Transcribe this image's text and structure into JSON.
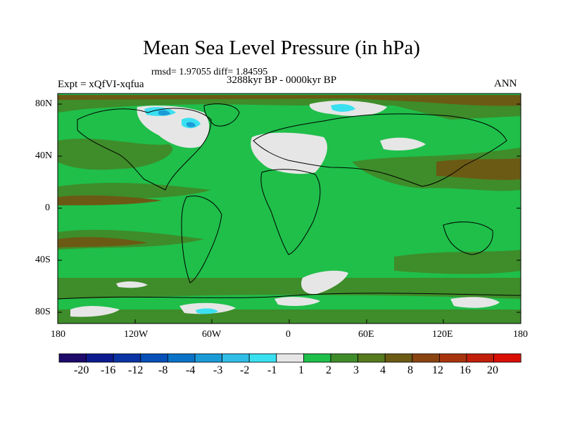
{
  "title": "Mean Sea Level Pressure (in hPa)",
  "stats": "rmsd= 1.97055 diff= 1.84595",
  "experiment": "Expt = xQfVI-xqfua",
  "period": "3288kyr BP - 0000kyr BP",
  "season": "ANN",
  "lat_labels": [
    "80N",
    "40N",
    "0",
    "40S",
    "80S"
  ],
  "lon_labels": [
    "180",
    "120W",
    "60W",
    "0",
    "60E",
    "120E",
    "180"
  ],
  "colorbar": {
    "colors": [
      "#1d0a6b",
      "#0c1a8f",
      "#0a34a3",
      "#0650b8",
      "#0a73c8",
      "#1b9ad8",
      "#30bde6",
      "#3ae0f0",
      "#e6e6e6",
      "#1fbf4a",
      "#3f8c2a",
      "#567a1e",
      "#6b5a14",
      "#8a4411",
      "#a8340d",
      "#c21e0a",
      "#d90f06"
    ],
    "labels": [
      "-20",
      "-16",
      "-12",
      "-8",
      "-4",
      "-3",
      "-2",
      "-1",
      "1",
      "2",
      "3",
      "4",
      "8",
      "12",
      "16",
      "20"
    ]
  },
  "map_colors": {
    "green": "#1fbf4a",
    "olive": "#3f8c2a",
    "brown": "#6b5a14",
    "white": "#e6e6e6",
    "cyan": "#3ae0f0",
    "blue": "#1b9ad8"
  }
}
